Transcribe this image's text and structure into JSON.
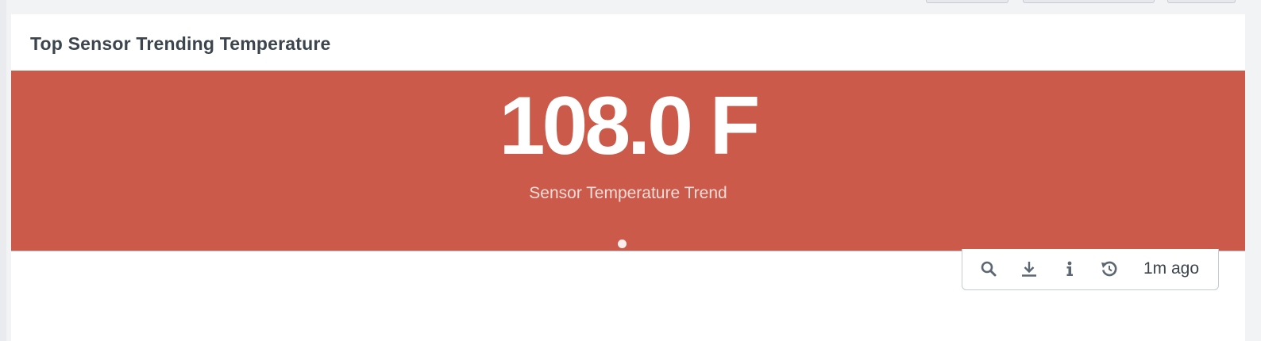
{
  "panel": {
    "title": "Top Sensor Trending Temperature"
  },
  "single_value": {
    "value": "108.0 F",
    "under_label": "Sensor Temperature Trend",
    "background_color": "#cc5a4a"
  },
  "toolbar": {
    "icons": [
      "search-icon",
      "download-icon",
      "info-icon",
      "refresh-icon"
    ],
    "time_ago": "1m ago"
  },
  "colors": {
    "accent": "#cc5a4a",
    "text_dark": "#3c444d",
    "icon": "#5c6773"
  }
}
